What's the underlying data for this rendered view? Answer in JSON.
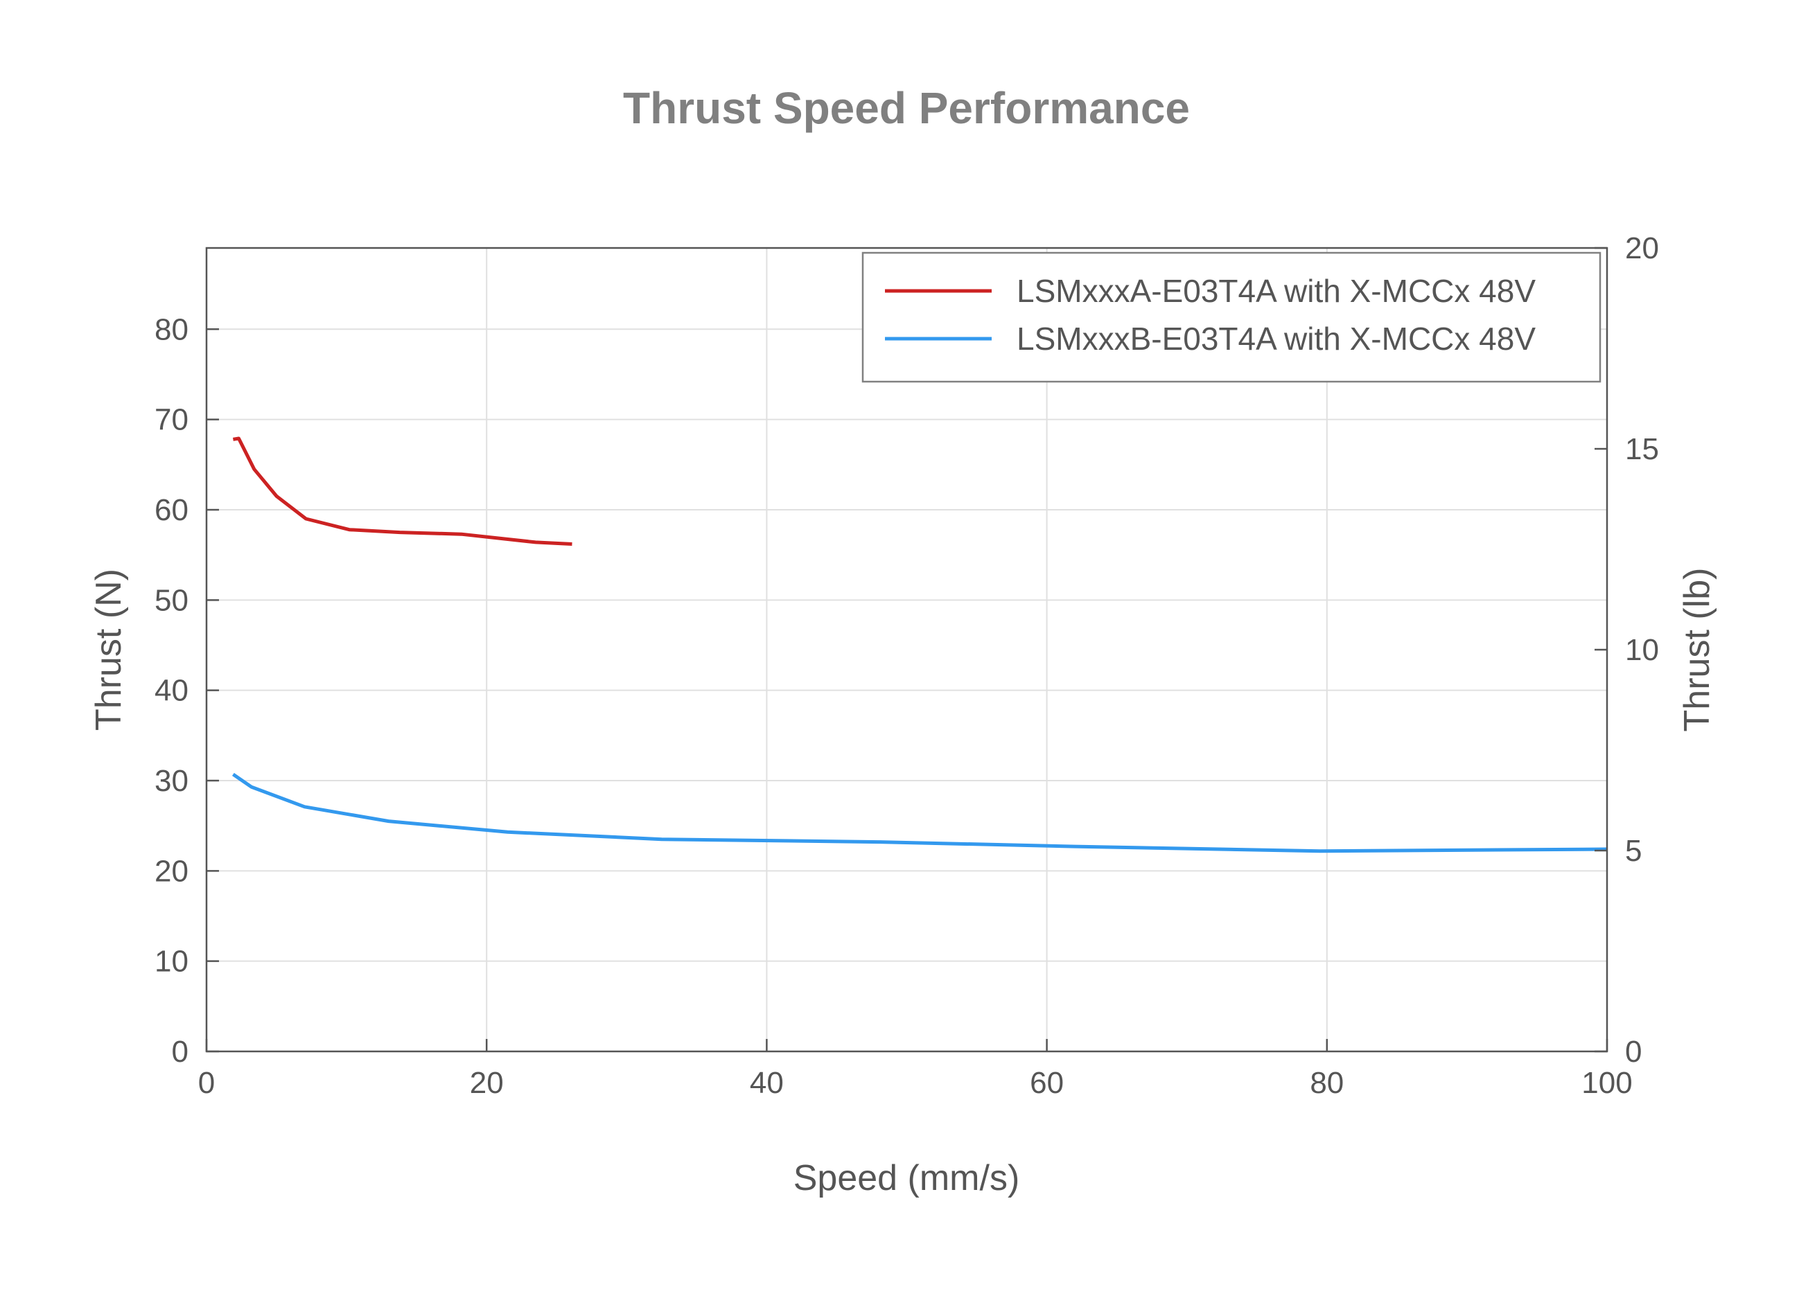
{
  "chart_data": {
    "type": "line",
    "title": "Thrust Speed Performance",
    "xlabel": "Speed (mm/s)",
    "ylabel": "Thrust (N)",
    "ylabel_right": "Thrust (lb)",
    "xlim": [
      0,
      100
    ],
    "ylim": [
      0,
      89
    ],
    "ylim_right": [
      0,
      20
    ],
    "xticks": [
      0,
      20,
      40,
      60,
      80,
      100
    ],
    "yticks": [
      0,
      10,
      20,
      30,
      40,
      50,
      60,
      70,
      80
    ],
    "yticks_right": [
      0,
      5,
      10,
      15,
      20
    ],
    "grid": true,
    "legend_position": "top-right",
    "series": [
      {
        "name": "LSMxxxA-E03T4A with X-MCCx 48V",
        "color": "#cc2222",
        "x": [
          1.9,
          2.3,
          3.4,
          5.0,
          7.1,
          10.2,
          13.8,
          18.2,
          23.5,
          26.1
        ],
        "y": [
          67.8,
          67.9,
          64.5,
          61.5,
          59.0,
          57.8,
          57.5,
          57.3,
          56.4,
          56.2
        ]
      },
      {
        "name": "LSMxxxB-E03T4A with X-MCCx 48V",
        "color": "#3399ee",
        "x": [
          1.9,
          3.2,
          7.0,
          13.0,
          21.5,
          32.5,
          48.0,
          62.0,
          79.5,
          100
        ],
        "y": [
          30.7,
          29.3,
          27.1,
          25.5,
          24.3,
          23.5,
          23.2,
          22.7,
          22.2,
          22.4
        ]
      }
    ]
  }
}
